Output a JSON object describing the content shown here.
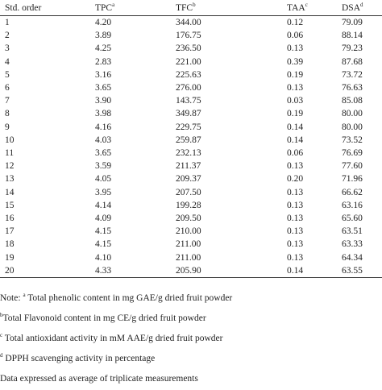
{
  "headers": [
    {
      "label": "Std. order",
      "sup": ""
    },
    {
      "label": "TPC",
      "sup": "a"
    },
    {
      "label": "TFC",
      "sup": "b"
    },
    {
      "label": "TAA",
      "sup": "c"
    },
    {
      "label": "DSA",
      "sup": "d"
    }
  ],
  "rows": [
    [
      "1",
      "4.20",
      "344.00",
      "0.12",
      "79.09"
    ],
    [
      "2",
      "3.89",
      "176.75",
      "0.06",
      "88.14"
    ],
    [
      "3",
      "4.25",
      "236.50",
      "0.13",
      "79.23"
    ],
    [
      "4",
      "2.83",
      "221.00",
      "0.39",
      "87.68"
    ],
    [
      "5",
      "3.16",
      "225.63",
      "0.19",
      "73.72"
    ],
    [
      "6",
      "3.65",
      "276.00",
      "0.13",
      "76.63"
    ],
    [
      "7",
      "3.90",
      "143.75",
      "0.03",
      "85.08"
    ],
    [
      "8",
      "3.98",
      "349.87",
      "0.19",
      "80.00"
    ],
    [
      "9",
      "4.16",
      "229.75",
      "0.14",
      "80.00"
    ],
    [
      "10",
      "4.03",
      "259.87",
      "0.14",
      "73.52"
    ],
    [
      "11",
      "3.65",
      "232.13",
      "0.06",
      "76.69"
    ],
    [
      "12",
      "3.59",
      "211.37",
      "0.13",
      "77.60"
    ],
    [
      "13",
      "4.05",
      "209.37",
      "0.20",
      "71.96"
    ],
    [
      "14",
      "3.95",
      "207.50",
      "0.13",
      "66.62"
    ],
    [
      "15",
      "4.14",
      "199.28",
      "0.13",
      "63.16"
    ],
    [
      "16",
      "4.09",
      "209.50",
      "0.13",
      "65.60"
    ],
    [
      "17",
      "4.15",
      "210.00",
      "0.13",
      "63.51"
    ],
    [
      "18",
      "4.15",
      "211.00",
      "0.13",
      "63.33"
    ],
    [
      "19",
      "4.10",
      "211.00",
      "0.13",
      "64.34"
    ],
    [
      "20",
      "4.33",
      "205.90",
      "0.14",
      "63.55"
    ]
  ],
  "notes": [
    {
      "prefix": "Note: ",
      "sup": "a",
      "text": " Total phenolic content in mg GAE/g dried fruit powder"
    },
    {
      "prefix": "",
      "sup": "b",
      "text": "Total Flavonoid content in mg CE/g dried fruit powder"
    },
    {
      "prefix": "",
      "sup": "c",
      "text": " Total antioxidant activity in mM AAE/g dried fruit powder"
    },
    {
      "prefix": "",
      "sup": "d",
      "text": " DPPH scavenging activity in percentage"
    },
    {
      "prefix": "",
      "sup": "",
      "text": "Data expressed as average of triplicate measurements"
    }
  ]
}
